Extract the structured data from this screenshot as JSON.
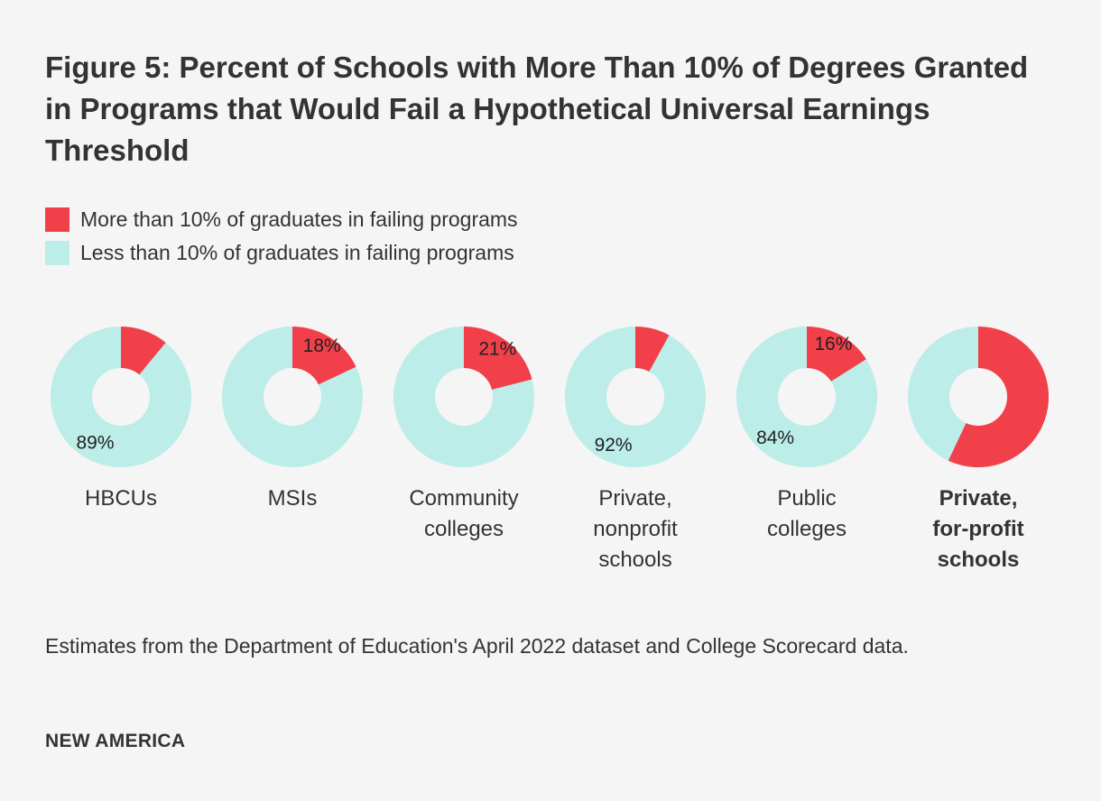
{
  "chart_data": {
    "type": "pie",
    "variant": "donut",
    "title": "Figure 5: Percent of Schools with More Than 10% of Degrees Granted in Programs that Would Fail a Hypothetical Universal Earnings Threshold",
    "legend": [
      {
        "label": "More than 10% of graduates in failing programs",
        "color": "#f2404a"
      },
      {
        "label": "Less than 10% of graduates in failing programs",
        "color": "#bcede8"
      }
    ],
    "series_colors": {
      "more": "#f2404a",
      "less": "#bcede8"
    },
    "categories": [
      {
        "label_lines": [
          "HBCUs"
        ],
        "bold": false,
        "more": 11,
        "less": 89,
        "more_label": "",
        "less_label": "89%"
      },
      {
        "label_lines": [
          "MSIs"
        ],
        "bold": false,
        "more": 18,
        "less": 82,
        "more_label": "18%",
        "less_label": ""
      },
      {
        "label_lines": [
          "Community",
          "colleges"
        ],
        "bold": false,
        "more": 21,
        "less": 79,
        "more_label": "21%",
        "less_label": ""
      },
      {
        "label_lines": [
          "Private,",
          "nonprofit",
          "schools"
        ],
        "bold": false,
        "more": 8,
        "less": 92,
        "more_label": "",
        "less_label": "92%"
      },
      {
        "label_lines": [
          "Public",
          "colleges"
        ],
        "bold": false,
        "more": 16,
        "less": 84,
        "more_label": "16%",
        "less_label": "84%"
      },
      {
        "label_lines": [
          "Private,",
          "for-profit",
          "schools"
        ],
        "bold": true,
        "more": 57,
        "less": 43,
        "more_label": "",
        "less_label": ""
      }
    ],
    "source": "Estimates from the Department of Education's April 2022 dataset and College Scorecard data."
  },
  "footer": {
    "brand": "NEW AMERICA"
  }
}
